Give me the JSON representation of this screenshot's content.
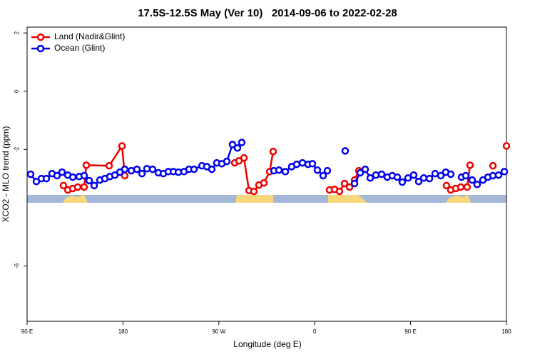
{
  "chart_data": {
    "type": "line",
    "title": "17.5S-12.5S May (Ver 10)   2014-09-06 to 2022-02-28",
    "xlabel": "Longitude (deg E)",
    "ylabel": "XCO2 - MLO trend (ppm)",
    "xlim": [
      90,
      540
    ],
    "ylim": [
      -7.9,
      2.2
    ],
    "xticks": [
      {
        "value": 90,
        "label": "90 E"
      },
      180,
      {
        "value": 270,
        "label": "90 W"
      },
      {
        "value": 360,
        "label": "0"
      },
      {
        "value": 450,
        "label": "90 E"
      },
      {
        "value": 540,
        "label": "180"
      }
    ],
    "yticks": [
      2,
      0,
      -2,
      -6
    ],
    "legend": "top-left",
    "series": [
      {
        "name": "Land (Nadir&Glint)",
        "color": "#ee0000",
        "x": [
          124.1,
          128.2,
          132.9,
          137.5,
          143.6,
          145.6,
          167.0,
          179.1,
          181.7,
          null,
          284.9,
          288.9,
          293.6,
          298.3,
          302.9,
          307.6,
          312.3,
          317.7,
          321.0,
          null,
          373.9,
          378.6,
          383.3,
          388.0,
          392.7,
          397.4,
          401.4,
          null,
          483.7,
          487.7,
          492.4,
          497.1,
          503.1,
          505.8,
          null,
          527.3,
          null,
          540
        ],
        "values": [
          -3.24,
          -3.39,
          -3.34,
          -3.29,
          -3.29,
          -2.54,
          -2.56,
          -1.88,
          -2.9,
          null,
          -2.46,
          -2.39,
          -2.29,
          -3.41,
          -3.44,
          -3.22,
          -3.15,
          -2.76,
          -2.07,
          null,
          -3.39,
          -3.37,
          -3.44,
          -3.17,
          -3.29,
          -3.05,
          -2.73,
          null,
          -3.24,
          -3.39,
          -3.34,
          -3.29,
          -3.29,
          -2.54,
          null,
          -2.56,
          null,
          -1.88
        ]
      },
      {
        "name": "Ocean (Glint)",
        "color": "#0000ee",
        "x": [
          93.3,
          98.7,
          103.4,
          108.1,
          113.4,
          118.1,
          122.8,
          128.2,
          132.9,
          138.9,
          143.6,
          148.3,
          153.0,
          158.3,
          163.0,
          167.7,
          172.4,
          177.1,
          181.7,
          187.8,
          193.1,
          197.8,
          202.5,
          207.8,
          213.2,
          217.9,
          222.6,
          227.3,
          232.0,
          237.3,
          242.0,
          246.7,
          254.1,
          258.7,
          263.4,
          268.1,
          272.8,
          277.5,
          282.8,
          287.5,
          291.5,
          null,
          321.7,
          326.4,
          332.4,
          338.4,
          343.1,
          348.5,
          353.8,
          357.8,
          362.5,
          367.9,
          371.9,
          null,
          388.6,
          null,
          397.4,
          402.7,
          407.4,
          412.1,
          417.4,
          422.8,
          428.1,
          432.8,
          437.5,
          442.2,
          447.6,
          452.9,
          457.6,
          462.3,
          467.7,
          473.0,
          478.4,
          483.0,
          487.7,
          null,
          497.8,
          501.8,
          507.8,
          512.5,
          517.9,
          522.6,
          527.3,
          532.6,
          538.0
        ],
        "values": [
          -2.85,
          -3.1,
          -3.0,
          -3.0,
          -2.83,
          -2.9,
          -2.78,
          -2.88,
          -2.95,
          -2.93,
          -2.9,
          -3.07,
          -3.24,
          -3.05,
          -3.0,
          -2.93,
          -2.88,
          -2.78,
          -2.68,
          -2.73,
          -2.68,
          -2.83,
          -2.66,
          -2.68,
          -2.8,
          -2.83,
          -2.76,
          -2.76,
          -2.78,
          -2.76,
          -2.68,
          -2.68,
          -2.56,
          -2.59,
          -2.68,
          -2.46,
          -2.49,
          -2.41,
          -1.83,
          -1.95,
          -1.76,
          null,
          -2.73,
          -2.71,
          -2.76,
          -2.59,
          -2.51,
          -2.46,
          -2.51,
          -2.49,
          -2.71,
          -2.9,
          -2.73,
          null,
          -2.05,
          null,
          -3.17,
          -2.8,
          -2.68,
          -2.98,
          -2.88,
          -2.85,
          -2.95,
          -2.9,
          -2.95,
          -3.12,
          -2.98,
          -2.88,
          -3.1,
          -2.98,
          -3.0,
          -2.83,
          -2.9,
          -2.78,
          -2.85,
          null,
          -2.95,
          -2.9,
          -3.05,
          -3.2,
          -3.05,
          -2.95,
          -2.9,
          -2.88,
          -2.76
        ]
      }
    ]
  }
}
